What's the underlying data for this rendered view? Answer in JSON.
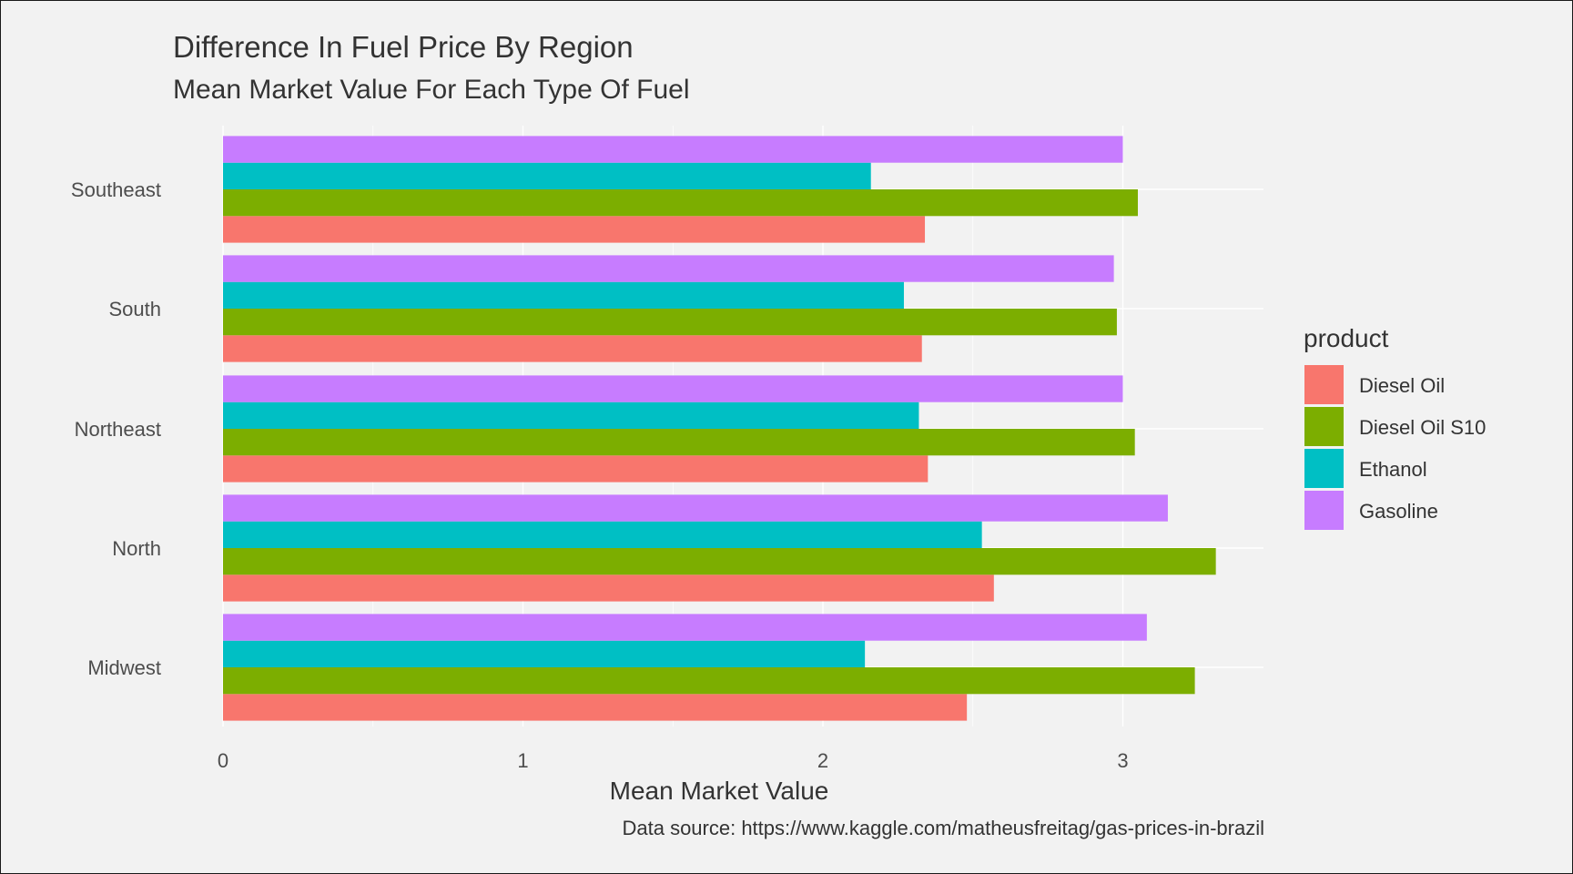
{
  "chart_data": {
    "type": "bar",
    "orientation": "horizontal",
    "title": "Difference In Fuel Price By Region",
    "subtitle": "Mean Market Value For Each Type Of Fuel",
    "xlabel": "Mean Market Value",
    "ylabel": "",
    "caption": "Data source: https://www.kaggle.com/matheusfreitag/gas-prices-in-brazil",
    "categories": [
      "Midwest",
      "North",
      "Northeast",
      "South",
      "Southeast"
    ],
    "xlim": [
      0,
      3.48
    ],
    "x_ticks": [
      "0",
      "1",
      "2",
      "3"
    ],
    "grid": true,
    "legend": {
      "title": "product",
      "position": "right"
    },
    "series": [
      {
        "name": "Diesel Oil",
        "color": "#f8766d",
        "values": [
          2.48,
          2.57,
          2.35,
          2.33,
          2.34
        ]
      },
      {
        "name": "Diesel Oil S10",
        "color": "#7cae00",
        "values": [
          3.24,
          3.31,
          3.04,
          2.98,
          3.05
        ]
      },
      {
        "name": "Ethanol",
        "color": "#00bfc4",
        "values": [
          2.14,
          2.53,
          2.32,
          2.27,
          2.16
        ]
      },
      {
        "name": "Gasoline",
        "color": "#c77cff",
        "values": [
          3.08,
          3.15,
          3.0,
          2.97,
          3.0
        ]
      }
    ]
  }
}
